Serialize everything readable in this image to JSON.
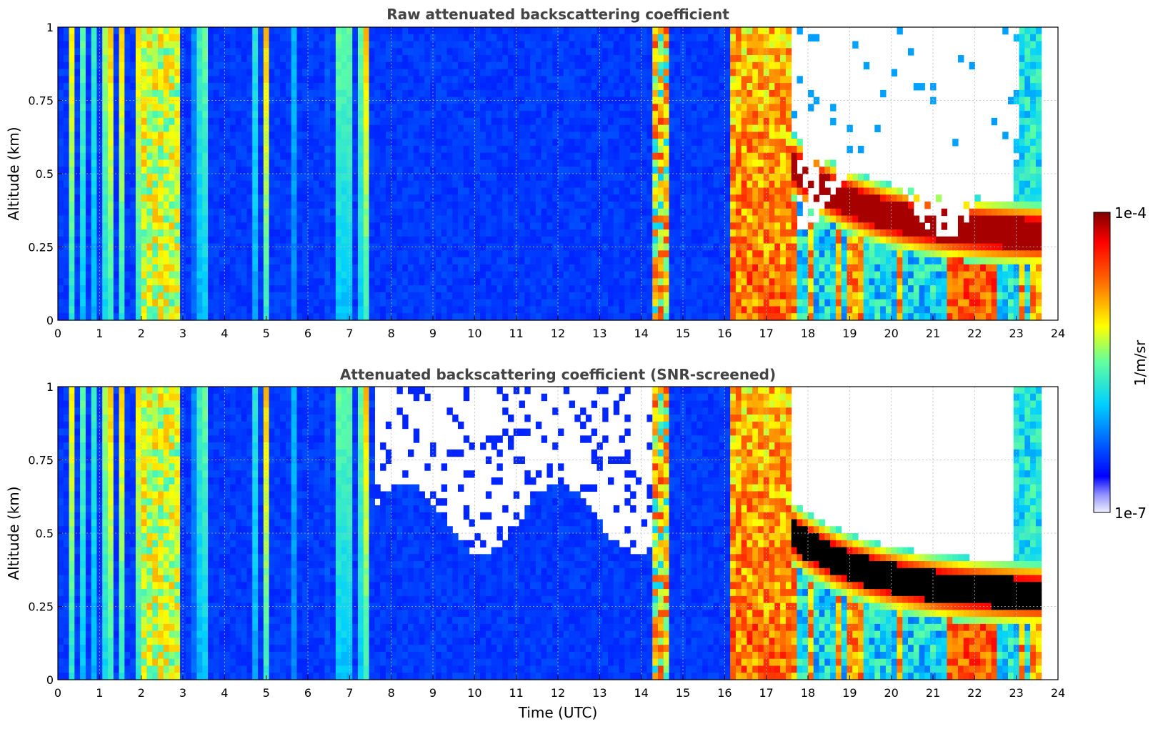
{
  "chart_data": [
    {
      "type": "heatmap",
      "title": "Raw attenuated backscattering coefficient",
      "xlabel": "",
      "ylabel": "Altitude (km)",
      "xlim": [
        0,
        24
      ],
      "ylim": [
        0,
        1
      ],
      "xticks": [
        "0",
        "1",
        "2",
        "3",
        "4",
        "5",
        "6",
        "7",
        "8",
        "9",
        "10",
        "11",
        "12",
        "13",
        "14",
        "15",
        "16",
        "17",
        "18",
        "19",
        "20",
        "21",
        "22",
        "23",
        "24"
      ],
      "yticks": [
        "0",
        "0.25",
        "0.5",
        "0.75",
        "1"
      ],
      "grid": true,
      "features": [
        {
          "name": "low-aerosol background",
          "time_range": [
            0,
            16.0
          ],
          "level": "low"
        },
        {
          "name": "dense column",
          "time_range": [
            16.1,
            17.6
          ],
          "level": "high"
        },
        {
          "name": "elevated layer",
          "time_range": [
            17.6,
            23.6
          ],
          "altitude_start": 0.53,
          "altitude_end": 0.28,
          "level": "saturated"
        },
        {
          "name": "no-signal region",
          "time_range": [
            17.8,
            23.0
          ],
          "altitude_range": [
            0.45,
            1.0
          ],
          "level": "none"
        }
      ]
    },
    {
      "type": "heatmap",
      "title": "Attenuated backscattering coefficient (SNR-screened)",
      "xlabel": "Time (UTC)",
      "ylabel": "Altitude (km)",
      "xlim": [
        0,
        24
      ],
      "ylim": [
        0,
        1
      ],
      "xticks": [
        "0",
        "1",
        "2",
        "3",
        "4",
        "5",
        "6",
        "7",
        "8",
        "9",
        "10",
        "11",
        "12",
        "13",
        "14",
        "15",
        "16",
        "17",
        "18",
        "19",
        "20",
        "21",
        "22",
        "23",
        "24"
      ],
      "yticks": [
        "0",
        "0.25",
        "0.5",
        "0.75",
        "1"
      ],
      "grid": true,
      "features": [
        {
          "name": "screened region",
          "time_range": [
            7.6,
            14.3
          ],
          "altitude_range": [
            0.6,
            1.0
          ],
          "level": "none"
        },
        {
          "name": "dense column",
          "time_range": [
            16.1,
            17.6
          ],
          "level": "high"
        },
        {
          "name": "elevated layer (over-range)",
          "time_range": [
            17.6,
            23.6
          ],
          "altitude_start": 0.5,
          "altitude_end": 0.28,
          "level": "over-range"
        }
      ]
    }
  ],
  "colorbar": {
    "label": "1/m/sr",
    "max_label": "1e-4",
    "min_label": "1e-7",
    "colors": [
      "#f0f0ff",
      "#1010ff",
      "#00bfff",
      "#00ffff",
      "#ffff00",
      "#ff8000",
      "#ff0000",
      "#800000"
    ]
  }
}
